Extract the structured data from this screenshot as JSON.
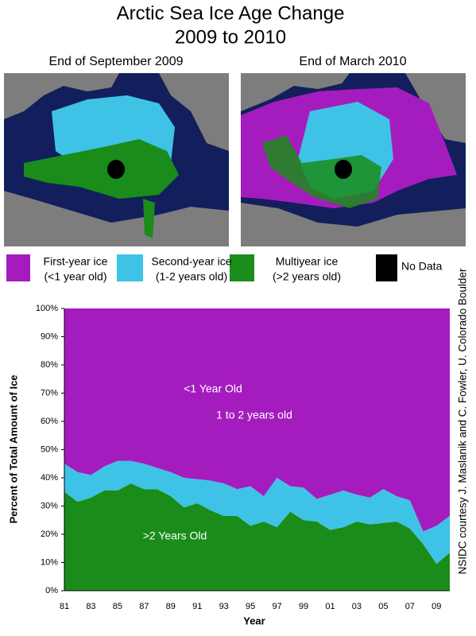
{
  "title": [
    "Arctic Sea Ice Age Change",
    "2009 to 2010"
  ],
  "maps": [
    {
      "title": "End of September 2009"
    },
    {
      "title": "End of March 2010"
    }
  ],
  "credit": "NSIDC courtesy J. Maslanik and C. Fowler, U. Colorado Boulder",
  "chart_data": {
    "type": "area",
    "stacked": true,
    "x_label": "Year",
    "y_label": "Percent of Total Amount of Ice",
    "categories": [
      "81",
      null,
      "83",
      null,
      "85",
      null,
      "87",
      null,
      "89",
      null,
      "91",
      null,
      "93",
      null,
      "95",
      null,
      "97",
      null,
      "99",
      null,
      "01",
      null,
      "03",
      null,
      "05",
      null,
      "07",
      null,
      "09",
      null
    ],
    "series": [
      {
        "name": "Multiyear ice",
        "detail": "(>2 years old)",
        "area_label": ">2 Years Old",
        "color": "#1a8c1a",
        "values": [
          35,
          31.5,
          33,
          35.5,
          35.5,
          38,
          36,
          36,
          33.5,
          29.5,
          31,
          28.5,
          26.5,
          26.5,
          23,
          24.5,
          22.5,
          28,
          25,
          24.5,
          21.5,
          22.5,
          24.5,
          23.5,
          24,
          24.5,
          22,
          16.5,
          9.5,
          13.5
        ]
      },
      {
        "name": "Second-year ice",
        "detail": "(1-2 years old)",
        "area_label": "1 to 2 years old",
        "color": "#3ec3e6",
        "values": [
          10,
          10.5,
          8,
          8.5,
          10.5,
          8,
          9,
          7.5,
          8.5,
          10.5,
          8.5,
          10.5,
          11.5,
          9.5,
          14,
          9,
          17.5,
          9,
          11.5,
          8,
          12.5,
          13,
          9.5,
          9.5,
          12,
          9,
          10,
          4.5,
          13.5,
          13
        ]
      },
      {
        "name": "First-year ice",
        "detail": "(<1 year old)",
        "area_label": "<1 Year Old",
        "color": "#a51cbe",
        "values": [
          55,
          58,
          59,
          56,
          54,
          54,
          55,
          56.5,
          58,
          60,
          60.5,
          61,
          62,
          64,
          63,
          66.5,
          60,
          63,
          63.5,
          67.5,
          66,
          64.5,
          66,
          67,
          64,
          66.5,
          68,
          79,
          77,
          73.5
        ]
      }
    ],
    "no_data": {
      "name": "No Data",
      "color": "#000000"
    },
    "ylim": [
      0,
      100
    ],
    "yticks": [
      {
        "value": 0,
        "label": "0%"
      },
      {
        "value": 10,
        "label": "10%"
      },
      {
        "value": 20,
        "label": "20%"
      },
      {
        "value": 30,
        "label": "30%"
      },
      {
        "value": 40,
        "label": "40%"
      },
      {
        "value": 50,
        "label": "50%"
      },
      {
        "value": 60,
        "label": "60%"
      },
      {
        "value": 70,
        "label": "70%"
      },
      {
        "value": 80,
        "label": "80%"
      },
      {
        "value": 90,
        "label": "90%"
      },
      {
        "value": 100,
        "label": "100%"
      }
    ]
  }
}
